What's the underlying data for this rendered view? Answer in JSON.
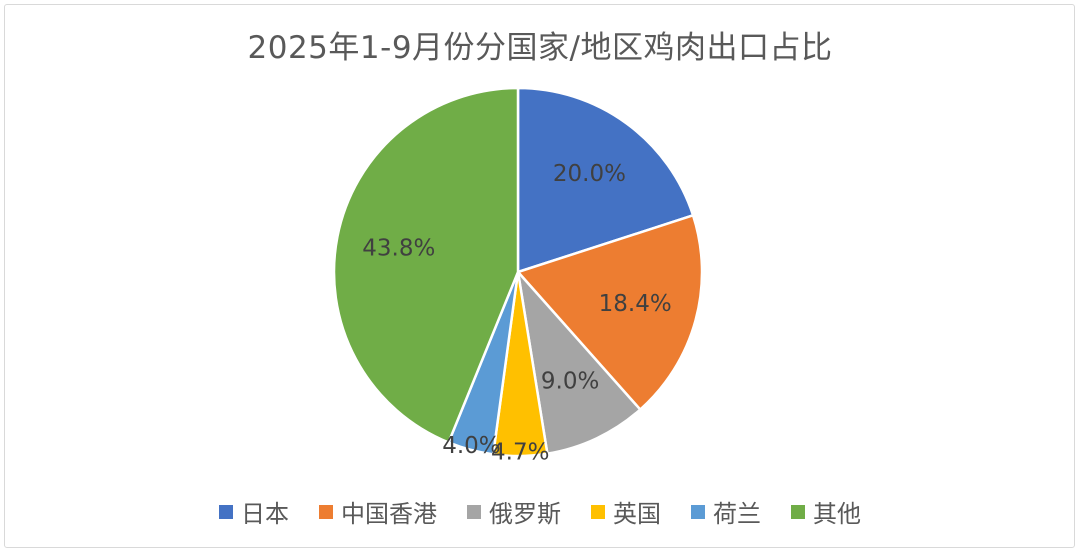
{
  "chart_data": {
    "type": "pie",
    "title": "2025年1-9月份分国家/地区鸡肉出口占比",
    "categories": [
      "日本",
      "中国香港",
      "俄罗斯",
      "英国",
      "荷兰",
      "其他"
    ],
    "values": [
      20.0,
      18.4,
      9.0,
      4.7,
      4.0,
      43.8
    ],
    "data_labels": [
      "20.0%",
      "18.4%",
      "9.0%",
      "4.7%",
      "4.0%",
      "43.8%"
    ],
    "colors": [
      "#4472C4",
      "#ED7D31",
      "#A5A5A5",
      "#FFC000",
      "#5B9BD5",
      "#70AD47"
    ],
    "legend_position": "bottom"
  }
}
